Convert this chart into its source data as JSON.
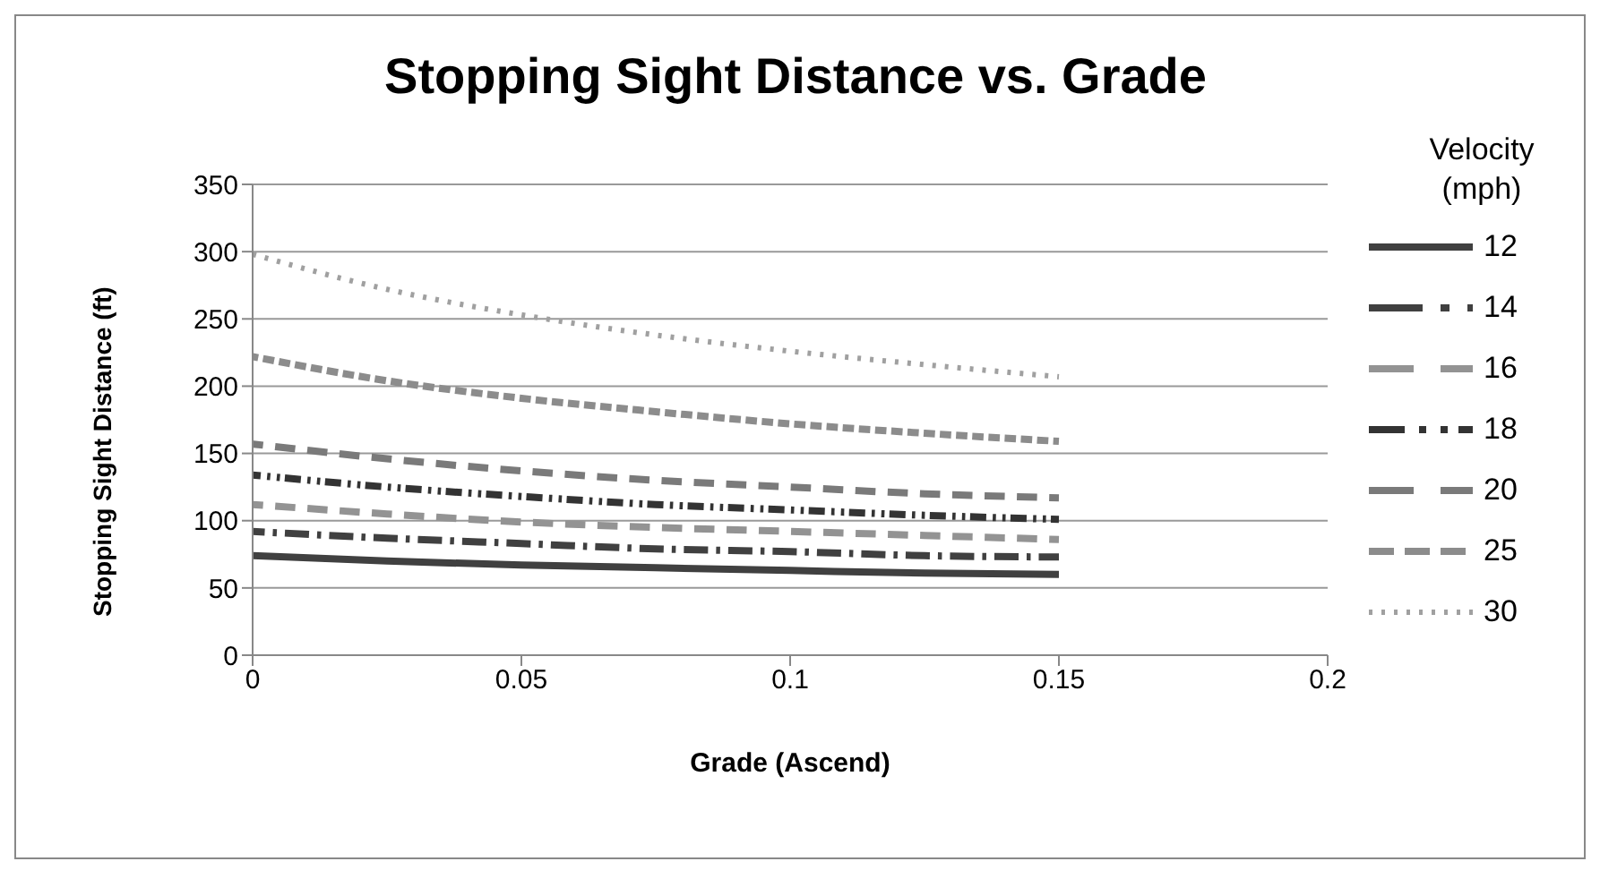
{
  "chart_data": {
    "type": "line",
    "title": "Stopping Sight Distance vs. Grade",
    "xlabel": "Grade (Ascend)",
    "ylabel": "Stopping Sight Distance (ft)",
    "legend_title": "Velocity (mph)",
    "x": [
      0,
      0.025,
      0.05,
      0.075,
      0.1,
      0.125,
      0.15
    ],
    "xlim": [
      0,
      0.2
    ],
    "xticks": [
      0,
      0.05,
      0.1,
      0.15,
      0.2
    ],
    "ylim": [
      0,
      350
    ],
    "yticks": [
      0,
      50,
      100,
      150,
      200,
      250,
      300,
      350
    ],
    "grid": "y",
    "legend": "right",
    "marker": "none",
    "series": [
      {
        "name": "12",
        "color": "#404040",
        "line_style": "solid",
        "values": [
          74,
          70,
          67,
          65,
          63,
          61,
          60
        ]
      },
      {
        "name": "14",
        "color": "#404040",
        "line_style": "dashed",
        "values": [
          92,
          87,
          83,
          79,
          77,
          74,
          73
        ]
      },
      {
        "name": "16",
        "color": "#939393",
        "line_style": "dashed",
        "values": [
          112,
          105,
          99,
          95,
          92,
          89,
          86
        ]
      },
      {
        "name": "18",
        "color": "#333333",
        "line_style": "dashed",
        "values": [
          134,
          125,
          118,
          112,
          108,
          104,
          101
        ]
      },
      {
        "name": "20",
        "color": "#7a7a7a",
        "line_style": "dashed",
        "values": [
          157,
          146,
          137,
          130,
          125,
          120,
          117
        ]
      },
      {
        "name": "25",
        "color": "#8c8c8c",
        "line_style": "dashed",
        "values": [
          222,
          204,
          191,
          181,
          172,
          165,
          159
        ]
      },
      {
        "name": "30",
        "color": "#a0a0a0",
        "line_style": "dotted",
        "values": [
          298,
          272,
          253,
          238,
          226,
          216,
          207
        ]
      }
    ]
  }
}
